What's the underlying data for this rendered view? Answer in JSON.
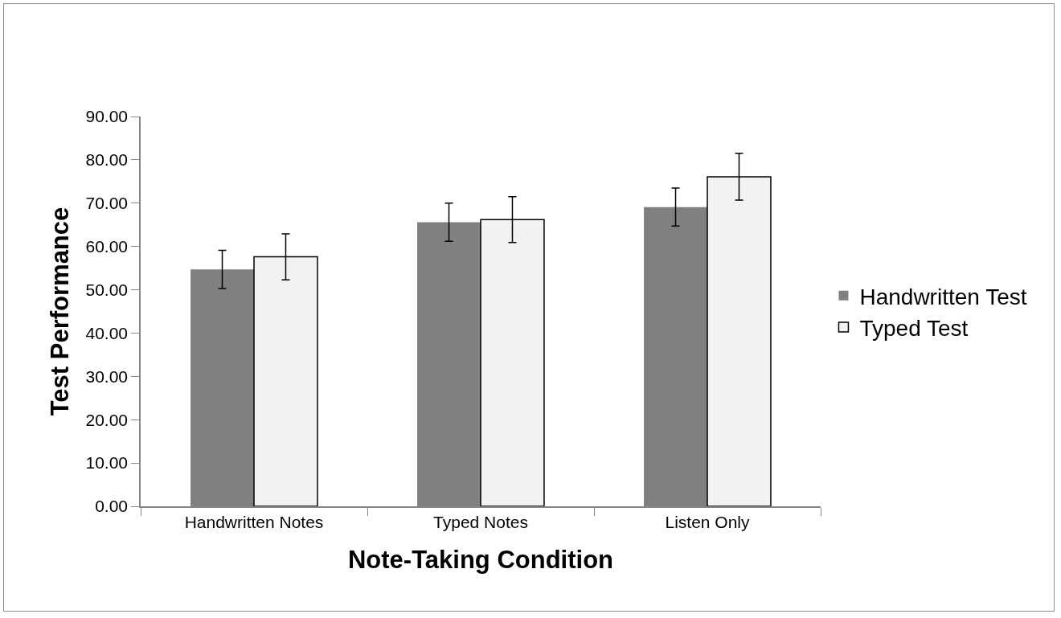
{
  "chart_data": {
    "type": "bar",
    "xlabel": "Note-Taking Condition",
    "ylabel": "Test Performance",
    "categories": [
      "Handwritten Notes",
      "Typed Notes",
      "Listen Only"
    ],
    "series": [
      {
        "name": "Handwritten Test",
        "color": "#808080",
        "values": [
          54.7,
          65.6,
          69.1
        ],
        "errors": [
          4.4,
          4.4,
          4.4
        ]
      },
      {
        "name": "Typed Test",
        "color": "#f2f2f2",
        "values": [
          57.6,
          66.2,
          76.1
        ],
        "errors": [
          5.3,
          5.3,
          5.4
        ]
      }
    ],
    "ylim": [
      0,
      90
    ],
    "yticks": [
      {
        "value": 0,
        "label": "0.00"
      },
      {
        "value": 10,
        "label": "10.00"
      },
      {
        "value": 20,
        "label": "20.00"
      },
      {
        "value": 30,
        "label": "30.00"
      },
      {
        "value": 40,
        "label": "40.00"
      },
      {
        "value": 50,
        "label": "50.00"
      },
      {
        "value": 60,
        "label": "60.00"
      },
      {
        "value": 70,
        "label": "70.00"
      },
      {
        "value": 80,
        "label": "80.00"
      },
      {
        "value": 90,
        "label": "90.00"
      }
    ],
    "grid": false,
    "legend": "right"
  }
}
